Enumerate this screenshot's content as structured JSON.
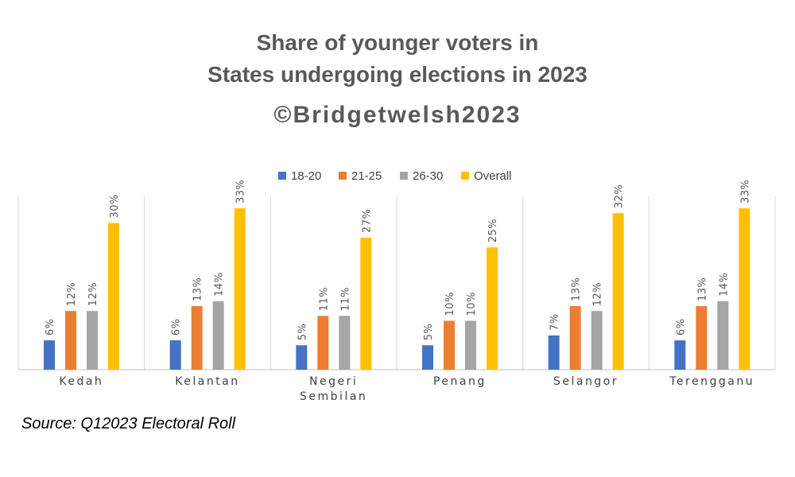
{
  "chart_data": {
    "type": "bar",
    "title": "Share of younger voters in",
    "title_line2": "States undergoing elections in 2023",
    "subtitle": "©Bridgetwelsh2023",
    "categories": [
      "Kedah",
      "Kelantan",
      "Negeri Sembilan",
      "Penang",
      "Selangor",
      "Terengganu"
    ],
    "series": [
      {
        "name": "18-20",
        "color": "#4472C4",
        "values": [
          6,
          6,
          5,
          5,
          7,
          6
        ]
      },
      {
        "name": "21-25",
        "color": "#ED7D31",
        "values": [
          12,
          13,
          11,
          10,
          13,
          13
        ]
      },
      {
        "name": "26-30",
        "color": "#A5A5A5",
        "values": [
          12,
          14,
          11,
          10,
          12,
          14
        ]
      },
      {
        "name": "Overall",
        "color": "#FFC000",
        "values": [
          30,
          33,
          27,
          25,
          32,
          33
        ]
      }
    ],
    "value_suffix": "%",
    "xlabel": "",
    "ylabel": "",
    "legend_position": "top",
    "gridlines": "vertical separators between categories",
    "source": "Source: Q12023 Electoral Roll"
  }
}
